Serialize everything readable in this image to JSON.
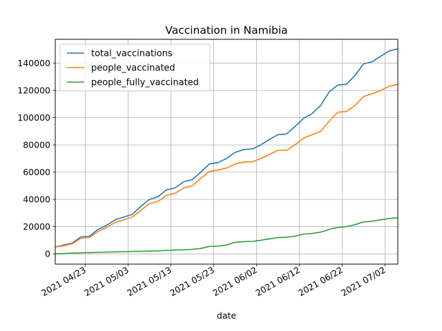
{
  "chart_data": {
    "type": "line",
    "title": "Vaccination in Namibia",
    "xlabel": "date",
    "ylabel": "",
    "ylim": [
      -7500,
      157500
    ],
    "xlim": [
      "2021-04-16",
      "2021-07-05"
    ],
    "grid": true,
    "legend_position": "top-left",
    "y_ticks": [
      0,
      20000,
      40000,
      60000,
      80000,
      100000,
      120000,
      140000
    ],
    "x_ticks": [
      "2021-04-23",
      "2021-05-03",
      "2021-05-13",
      "2021-05-23",
      "2021-06-02",
      "2021-06-12",
      "2021-06-22",
      "2021-07-02"
    ],
    "x_tick_labels": [
      "2021 04/23",
      "2021 05/03",
      "2021 05/13",
      "2021 05/23",
      "2021 06/02",
      "2021 06/12",
      "2021 06/22",
      "2021 07/02"
    ],
    "x": [
      "2021-04-16",
      "2021-04-18",
      "2021-04-20",
      "2021-04-22",
      "2021-04-24",
      "2021-04-26",
      "2021-04-28",
      "2021-04-30",
      "2021-05-02",
      "2021-05-04",
      "2021-05-06",
      "2021-05-08",
      "2021-05-10",
      "2021-05-12",
      "2021-05-14",
      "2021-05-16",
      "2021-05-18",
      "2021-05-20",
      "2021-05-22",
      "2021-05-24",
      "2021-05-26",
      "2021-05-28",
      "2021-05-30",
      "2021-06-01",
      "2021-06-03",
      "2021-06-05",
      "2021-06-07",
      "2021-06-09",
      "2021-06-11",
      "2021-06-13",
      "2021-06-15",
      "2021-06-17",
      "2021-06-19",
      "2021-06-21",
      "2021-06-23",
      "2021-06-25",
      "2021-06-27",
      "2021-06-29",
      "2021-07-01",
      "2021-07-03",
      "2021-07-05"
    ],
    "series": [
      {
        "name": "total_vaccinations",
        "color": "#1f77b4",
        "values": [
          5000,
          6500,
          8000,
          12500,
          13000,
          18000,
          21000,
          25000,
          27000,
          29000,
          35000,
          40000,
          42000,
          47000,
          48500,
          53000,
          54500,
          60000,
          66000,
          67000,
          70000,
          74500,
          76500,
          77000,
          80000,
          84000,
          87500,
          88000,
          93500,
          99500,
          103000,
          109000,
          119000,
          124000,
          124500,
          131000,
          139500,
          141000,
          145000,
          149000,
          150500
        ]
      },
      {
        "name": "people_vaccinated",
        "color": "#ff7f0e",
        "values": [
          5000,
          6000,
          7500,
          11500,
          12000,
          16500,
          19500,
          23000,
          25000,
          27000,
          32000,
          37000,
          38500,
          43000,
          44500,
          48500,
          50000,
          55500,
          60500,
          61500,
          63000,
          66000,
          67500,
          67500,
          70000,
          73000,
          76000,
          76000,
          80000,
          85000,
          87500,
          90000,
          97500,
          104000,
          104500,
          109000,
          115500,
          117500,
          120000,
          123000,
          124500
        ]
      },
      {
        "name": "people_fully_vaccinated",
        "color": "#2ca02c",
        "values": [
          0,
          300,
          500,
          800,
          900,
          1100,
          1300,
          1500,
          1600,
          1800,
          1900,
          2000,
          2200,
          2500,
          2800,
          3000,
          3400,
          4000,
          5500,
          5700,
          6500,
          8500,
          9000,
          9200,
          10000,
          11000,
          12000,
          12200,
          13000,
          14500,
          15000,
          16000,
          18000,
          19500,
          20000,
          21500,
          23500,
          24000,
          25000,
          26000,
          26500
        ]
      }
    ]
  }
}
